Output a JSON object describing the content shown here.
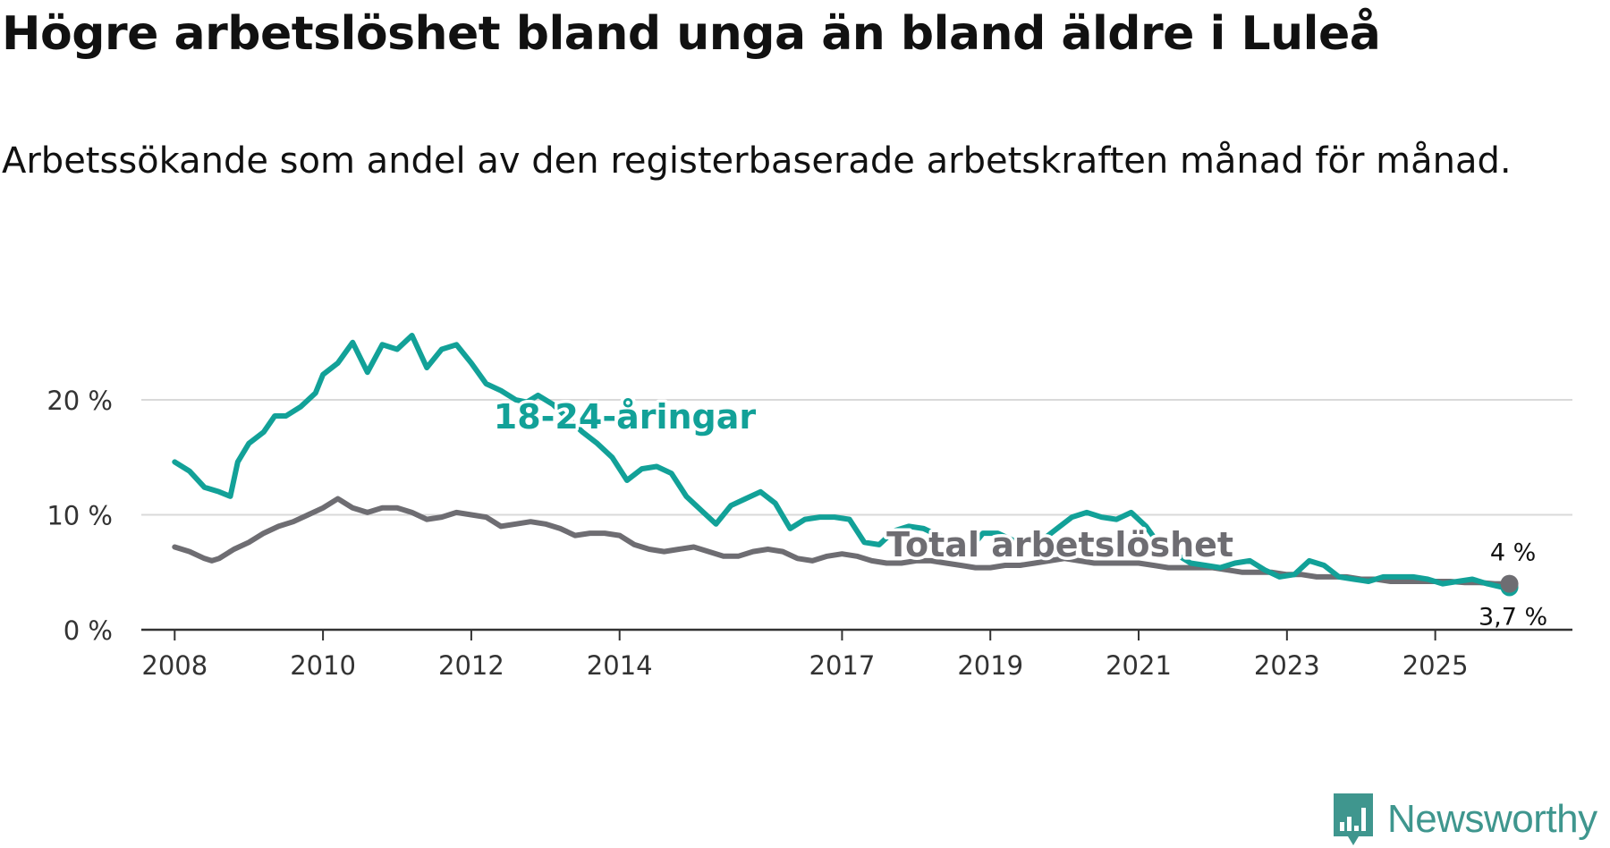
{
  "title": "Högre arbetslöshet bland unga än bland äldre i Luleå",
  "subtitle": "Arbetssökande som andel av den registerbaserade arbetskraften månad för månad.",
  "brand": {
    "name": "Newsworthy",
    "logo_icon": "newsworthy-logo-icon"
  },
  "colors": {
    "youth": "#12a198",
    "total": "#6e6d72",
    "grid": "#d9d9d9",
    "axis": "#333333",
    "brand": "#3f968e"
  },
  "chart_data": {
    "type": "line",
    "title": "Högre arbetslöshet bland unga än bland äldre i Luleå",
    "xlabel": "",
    "ylabel": "",
    "xlim": [
      2007.55,
      2026.85
    ],
    "ylim": [
      0,
      20
    ],
    "x_ticks": [
      {
        "value": 2008,
        "label": "2008"
      },
      {
        "value": 2010,
        "label": "2010"
      },
      {
        "value": 2012,
        "label": "2012"
      },
      {
        "value": 2014,
        "label": "2014"
      },
      {
        "value": 2017,
        "label": "2017"
      },
      {
        "value": 2019,
        "label": "2019"
      },
      {
        "value": 2021,
        "label": "2021"
      },
      {
        "value": 2023,
        "label": "2023"
      },
      {
        "value": 2025,
        "label": "2025"
      }
    ],
    "y_ticks": [
      {
        "value": 0,
        "label": "0 %"
      },
      {
        "value": 10,
        "label": "10 %"
      },
      {
        "value": 20,
        "label": "20 %"
      }
    ],
    "series": [
      {
        "name": "18-24-åringar",
        "label": "18-24-åringar",
        "label_at": [
          2012.3,
          17.5
        ],
        "color": "#12a198",
        "x": [
          2008.0,
          2008.2,
          2008.4,
          2008.6,
          2008.75,
          2008.85,
          2009.0,
          2009.2,
          2009.35,
          2009.5,
          2009.7,
          2009.9,
          2010.0,
          2010.2,
          2010.4,
          2010.6,
          2010.8,
          2011.0,
          2011.2,
          2011.4,
          2011.6,
          2011.8,
          2012.0,
          2012.2,
          2012.4,
          2012.6,
          2012.75,
          2012.9,
          2013.1,
          2013.3,
          2013.5,
          2013.7,
          2013.9,
          2014.1,
          2014.3,
          2014.5,
          2014.7,
          2014.9,
          2015.1,
          2015.3,
          2015.5,
          2015.7,
          2015.9,
          2016.1,
          2016.3,
          2016.5,
          2016.7,
          2016.9,
          2017.1,
          2017.3,
          2017.5,
          2017.7,
          2017.9,
          2018.1,
          2018.3,
          2018.5,
          2018.7,
          2018.9,
          2019.1,
          2019.3,
          2019.5,
          2019.7,
          2019.9,
          2020.1,
          2020.3,
          2020.5,
          2020.7,
          2020.9,
          2021.1,
          2021.3,
          2021.5,
          2021.7,
          2021.9,
          2022.1,
          2022.3,
          2022.5,
          2022.7,
          2022.9,
          2023.1,
          2023.3,
          2023.5,
          2023.7,
          2023.9,
          2024.1,
          2024.3,
          2024.5,
          2024.7,
          2024.9,
          2025.1,
          2025.3,
          2025.5,
          2025.7,
          2025.9,
          2026.0
        ],
        "values": [
          14.6,
          13.8,
          12.4,
          12.0,
          11.6,
          14.6,
          16.2,
          17.2,
          18.6,
          18.6,
          19.4,
          20.6,
          22.2,
          23.2,
          25.0,
          22.4,
          24.8,
          24.4,
          25.6,
          22.8,
          24.4,
          24.8,
          23.2,
          21.4,
          20.8,
          20.0,
          19.8,
          20.4,
          19.6,
          18.4,
          17.2,
          16.2,
          15.0,
          13.0,
          14.0,
          14.2,
          13.6,
          11.6,
          10.4,
          9.2,
          10.8,
          11.4,
          12.0,
          11.0,
          8.8,
          9.6,
          9.8,
          9.8,
          9.6,
          7.6,
          7.4,
          8.6,
          9.0,
          8.8,
          8.2,
          7.2,
          6.8,
          8.4,
          8.4,
          7.8,
          7.6,
          7.8,
          8.8,
          9.8,
          10.2,
          9.8,
          9.6,
          10.2,
          9.0,
          7.2,
          6.6,
          5.8,
          5.6,
          5.4,
          5.8,
          6.0,
          5.2,
          4.6,
          4.8,
          6.0,
          5.6,
          4.6,
          4.4,
          4.2,
          4.6,
          4.6,
          4.6,
          4.4,
          4.0,
          4.2,
          4.4,
          4.0,
          3.7,
          3.7
        ],
        "end_label": "3,7 %"
      },
      {
        "name": "Total arbetslöshet",
        "label": "Total arbetslöshet",
        "label_at": [
          2017.6,
          6.4
        ],
        "color": "#6e6d72",
        "x": [
          2008.0,
          2008.2,
          2008.4,
          2008.5,
          2008.6,
          2008.8,
          2009.0,
          2009.2,
          2009.4,
          2009.6,
          2009.8,
          2010.0,
          2010.2,
          2010.4,
          2010.6,
          2010.8,
          2011.0,
          2011.2,
          2011.4,
          2011.6,
          2011.8,
          2012.0,
          2012.2,
          2012.4,
          2012.6,
          2012.8,
          2013.0,
          2013.2,
          2013.4,
          2013.6,
          2013.8,
          2014.0,
          2014.2,
          2014.4,
          2014.6,
          2014.8,
          2015.0,
          2015.2,
          2015.4,
          2015.6,
          2015.8,
          2016.0,
          2016.2,
          2016.4,
          2016.6,
          2016.8,
          2017.0,
          2017.2,
          2017.4,
          2017.6,
          2017.8,
          2018.0,
          2018.2,
          2018.4,
          2018.6,
          2018.8,
          2019.0,
          2019.2,
          2019.4,
          2019.6,
          2019.8,
          2020.0,
          2020.2,
          2020.4,
          2020.6,
          2020.8,
          2021.0,
          2021.2,
          2021.4,
          2021.6,
          2021.8,
          2022.0,
          2022.2,
          2022.4,
          2022.6,
          2022.8,
          2023.0,
          2023.2,
          2023.4,
          2023.6,
          2023.8,
          2024.0,
          2024.2,
          2024.4,
          2024.6,
          2024.8,
          2025.0,
          2025.2,
          2025.4,
          2025.6,
          2025.8,
          2026.0
        ],
        "values": [
          7.2,
          6.8,
          6.2,
          6.0,
          6.2,
          7.0,
          7.6,
          8.4,
          9.0,
          9.4,
          10.0,
          10.6,
          11.4,
          10.6,
          10.2,
          10.6,
          10.6,
          10.2,
          9.6,
          9.8,
          10.2,
          10.0,
          9.8,
          9.0,
          9.2,
          9.4,
          9.2,
          8.8,
          8.2,
          8.4,
          8.4,
          8.2,
          7.4,
          7.0,
          6.8,
          7.0,
          7.2,
          6.8,
          6.4,
          6.4,
          6.8,
          7.0,
          6.8,
          6.2,
          6.0,
          6.4,
          6.6,
          6.4,
          6.0,
          5.8,
          5.8,
          6.0,
          6.0,
          5.8,
          5.6,
          5.4,
          5.4,
          5.6,
          5.6,
          5.8,
          6.0,
          6.2,
          6.0,
          5.8,
          5.8,
          5.8,
          5.8,
          5.6,
          5.4,
          5.4,
          5.4,
          5.4,
          5.2,
          5.0,
          5.0,
          5.0,
          4.8,
          4.8,
          4.6,
          4.6,
          4.6,
          4.4,
          4.4,
          4.2,
          4.2,
          4.2,
          4.2,
          4.2,
          4.1,
          4.1,
          4.0,
          4.0
        ],
        "end_label": "4 %"
      }
    ]
  }
}
